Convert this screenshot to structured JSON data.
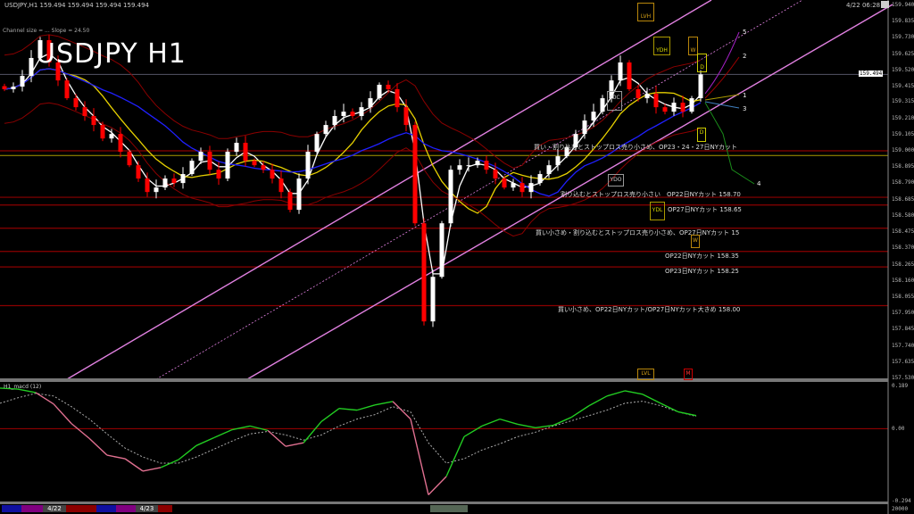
{
  "header": {
    "symbol_line": "USDJPY,H1  159.494 159.494 159.494 159.494",
    "channel_info": "Channel size = ... Slope = 24.50",
    "title": "USDJPY H1",
    "timestamp": "4/22 06:28"
  },
  "price_axis": {
    "labels": [
      "159.940",
      "159.835",
      "159.730",
      "159.625",
      "159.520",
      "159.415",
      "159.315",
      "159.210",
      "159.105",
      "159.000",
      "158.895",
      "158.790",
      "158.685",
      "158.580",
      "158.475",
      "158.370",
      "158.265",
      "158.160",
      "158.055",
      "157.950",
      "157.845",
      "157.740",
      "157.635",
      "157.530"
    ],
    "current_price": "159.494"
  },
  "levels": [
    {
      "price": 159.0,
      "text": "買い・割り込むとストップロス売り小さめ、OP23・24・27日NYカット"
    },
    {
      "price": 158.7,
      "text": "割り込むとストップロス売り小さい　OP22日NYカット 158.70"
    },
    {
      "price": 158.65,
      "text": "OP27日NYカット 158.65"
    },
    {
      "price": 158.5,
      "text": "買い小さめ・割り込むとストップロス売り小さめ、OP27日NYカット 15"
    },
    {
      "price": 158.35,
      "text": "OP22日NYカット 158.35"
    },
    {
      "price": 158.25,
      "text": "OP23日NYカット 158.25"
    },
    {
      "price": 158.0,
      "text": "買い小さめ、OP22日NYカット/OP27日NYカット大きめ 158.00"
    }
  ],
  "markers": {
    "lvh": "LVH",
    "ydh": "YDH",
    "w": "W",
    "d": "D",
    "ydc": "YDC",
    "ydo": "YDO",
    "ydl": "YDL",
    "lvl": "LVL",
    "m": "M",
    "w2": "W",
    "d2": "D"
  },
  "projection_labels": [
    "1",
    "2",
    "3",
    "4",
    "5"
  ],
  "macd_panel": {
    "label": "H1_macd (12)",
    "axis_top": "0.189",
    "axis_zero": "0.00",
    "axis_bottom": "-0.294",
    "volume_label": "20000"
  },
  "time_bar": {
    "dates": [
      "4/22",
      "4/23"
    ]
  },
  "colors": {
    "bull": "#ffffff",
    "bear": "#ff0000",
    "level": "#8b0000",
    "channel": "#e080e0",
    "macd_up": "#22cc22",
    "macd_down": "#e07090",
    "ma_fast": "#ffffff",
    "ma_mid": "#e6d000",
    "ma_slow": "#2020ff"
  },
  "chart_data": {
    "type": "candlestick",
    "symbol": "USDJPY",
    "timeframe": "H1",
    "ylim": [
      157.53,
      159.94
    ],
    "closes": [
      159.398,
      159.415,
      159.484,
      159.6,
      159.715,
      159.571,
      159.455,
      159.34,
      159.282,
      159.225,
      159.167,
      159.08,
      159.109,
      158.994,
      158.907,
      158.821,
      158.734,
      158.763,
      158.821,
      158.792,
      158.85,
      158.936,
      158.994,
      158.878,
      158.821,
      158.994,
      159.052,
      158.936,
      158.907,
      158.878,
      158.821,
      158.734,
      158.619,
      158.821,
      158.994,
      159.109,
      159.167,
      159.225,
      159.253,
      159.225,
      159.282,
      159.34,
      159.427,
      159.398,
      159.282,
      159.167,
      158.532,
      157.898,
      158.186,
      158.532,
      158.878,
      158.907,
      158.907,
      158.936,
      158.878,
      158.821,
      158.763,
      158.792,
      158.734,
      158.792,
      158.85,
      158.907,
      158.965,
      159.023,
      159.109,
      159.196,
      159.253,
      159.34,
      159.455,
      159.571,
      159.398,
      159.34,
      159.369,
      159.282,
      159.253,
      159.311,
      159.253,
      159.34,
      159.494
    ],
    "macd": [
      0.164,
      0.16,
      0.146,
      0.1,
      0.021,
      -0.039,
      -0.107,
      -0.121,
      -0.171,
      -0.157,
      -0.125,
      -0.068,
      -0.036,
      -0.004,
      0.011,
      -0.007,
      -0.071,
      -0.057,
      0.029,
      0.082,
      0.075,
      0.096,
      0.11,
      0.039,
      -0.267,
      -0.193,
      -0.032,
      0.011,
      0.039,
      0.018,
      0.004,
      0.014,
      0.046,
      0.093,
      0.132,
      0.153,
      0.139,
      0.103,
      0.068,
      0.053
    ],
    "signal": [
      0.103,
      0.125,
      0.143,
      0.132,
      0.089,
      0.039,
      -0.021,
      -0.078,
      -0.114,
      -0.139,
      -0.139,
      -0.114,
      -0.082,
      -0.05,
      -0.021,
      -0.011,
      -0.025,
      -0.046,
      -0.025,
      0.011,
      0.039,
      0.057,
      0.089,
      0.068,
      -0.057,
      -0.139,
      -0.121,
      -0.086,
      -0.061,
      -0.032,
      -0.014,
      0.011,
      0.032,
      0.053,
      0.075,
      0.103,
      0.111,
      0.093,
      0.068,
      0.05
    ],
    "macd_ylim": [
      -0.294,
      0.189
    ]
  }
}
